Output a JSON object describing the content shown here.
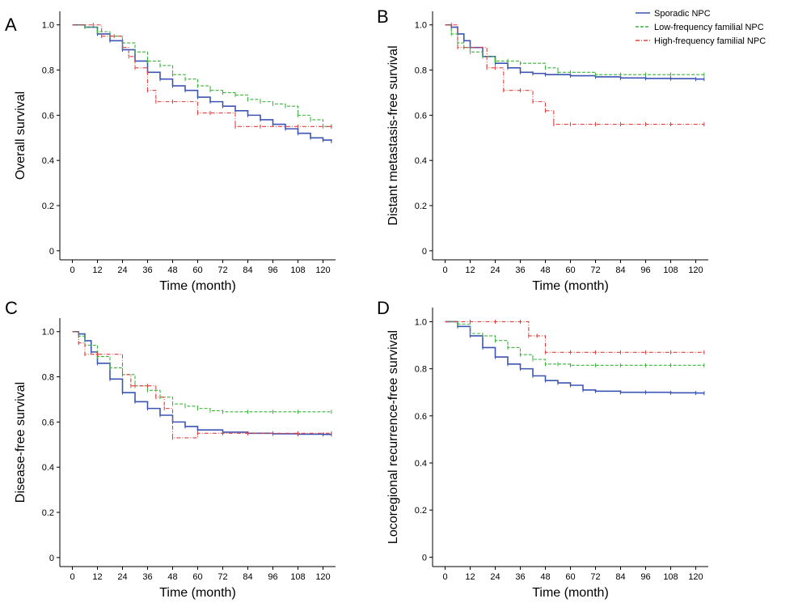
{
  "figure_legend": {
    "entries": [
      {
        "label": "Sporadic NPC",
        "color": "#3c55b4",
        "dash": "solid"
      },
      {
        "label": "Low-frequency familial NPC",
        "color": "#3cb43c",
        "dash": "dashed"
      },
      {
        "label": "High-frequency familial NPC",
        "color": "#e04040",
        "dash": "dashdot"
      }
    ],
    "placement": "top-right"
  },
  "chart_data": [
    {
      "type": "line",
      "panel": "A",
      "xlabel": "Time (month)",
      "ylabel": "Overall survival",
      "xticks": [
        0,
        12,
        24,
        36,
        48,
        60,
        72,
        84,
        96,
        108,
        120
      ],
      "yticks": [
        0,
        0.2,
        0.4,
        0.6,
        0.8,
        1.0
      ],
      "ytick_labels": [
        "0",
        "0.2",
        "0.4",
        "0.6",
        "0.8",
        "1.0"
      ],
      "xlim": [
        -6,
        126
      ],
      "ylim": [
        -0.04,
        1.06
      ],
      "grid": false,
      "series": [
        {
          "name": "Sporadic NPC",
          "x": [
            0,
            6,
            12,
            18,
            24,
            30,
            36,
            42,
            48,
            54,
            60,
            66,
            72,
            78,
            84,
            90,
            96,
            102,
            108,
            114,
            120,
            124
          ],
          "y": [
            1.0,
            0.99,
            0.96,
            0.93,
            0.89,
            0.84,
            0.79,
            0.76,
            0.73,
            0.71,
            0.68,
            0.66,
            0.64,
            0.62,
            0.6,
            0.58,
            0.56,
            0.54,
            0.52,
            0.5,
            0.49,
            0.485
          ]
        },
        {
          "name": "Low-frequency familial NPC",
          "x": [
            0,
            6,
            12,
            18,
            24,
            30,
            36,
            42,
            48,
            54,
            60,
            66,
            72,
            78,
            84,
            90,
            96,
            102,
            108,
            114,
            120,
            124
          ],
          "y": [
            1.0,
            0.99,
            0.97,
            0.95,
            0.92,
            0.88,
            0.84,
            0.82,
            0.78,
            0.76,
            0.73,
            0.71,
            0.7,
            0.69,
            0.67,
            0.66,
            0.65,
            0.64,
            0.6,
            0.58,
            0.55,
            0.55
          ]
        },
        {
          "name": "High-frequency familial NPC",
          "x": [
            0,
            10,
            14,
            20,
            24,
            27,
            30,
            36,
            40,
            48,
            60,
            66,
            78,
            90,
            108,
            124
          ],
          "y": [
            1.0,
            1.0,
            0.95,
            0.95,
            0.9,
            0.86,
            0.81,
            0.71,
            0.66,
            0.66,
            0.61,
            0.61,
            0.55,
            0.55,
            0.55,
            0.55
          ]
        }
      ]
    },
    {
      "type": "line",
      "panel": "B",
      "xlabel": "Time (month)",
      "ylabel": "Distant metastasis-free survival",
      "xticks": [
        0,
        12,
        24,
        36,
        48,
        60,
        72,
        84,
        96,
        108,
        120
      ],
      "yticks": [
        0,
        0.2,
        0.4,
        0.6,
        0.8,
        1.0
      ],
      "ytick_labels": [
        "0",
        "0.2",
        "0.4",
        "0.6",
        "0.8",
        "1.0"
      ],
      "xlim": [
        -6,
        126
      ],
      "ylim": [
        -0.04,
        1.06
      ],
      "grid": false,
      "series": [
        {
          "name": "Sporadic NPC",
          "x": [
            0,
            3,
            6,
            9,
            12,
            18,
            24,
            30,
            36,
            42,
            48,
            60,
            72,
            84,
            96,
            108,
            120,
            124
          ],
          "y": [
            1.0,
            0.99,
            0.96,
            0.93,
            0.9,
            0.86,
            0.83,
            0.81,
            0.79,
            0.785,
            0.78,
            0.775,
            0.77,
            0.765,
            0.763,
            0.762,
            0.76,
            0.76
          ]
        },
        {
          "name": "Low-frequency familial NPC",
          "x": [
            0,
            3,
            6,
            9,
            12,
            18,
            24,
            30,
            36,
            48,
            54,
            60,
            72,
            84,
            96,
            108,
            124
          ],
          "y": [
            1.0,
            0.96,
            0.92,
            0.9,
            0.88,
            0.86,
            0.84,
            0.84,
            0.83,
            0.81,
            0.79,
            0.79,
            0.78,
            0.78,
            0.78,
            0.78,
            0.78
          ]
        },
        {
          "name": "High-frequency familial NPC",
          "x": [
            0,
            3,
            6,
            12,
            20,
            24,
            28,
            36,
            42,
            48,
            52,
            60,
            72,
            84,
            96,
            108,
            124
          ],
          "y": [
            1.0,
            1.0,
            0.9,
            0.9,
            0.81,
            0.81,
            0.71,
            0.71,
            0.66,
            0.62,
            0.56,
            0.56,
            0.56,
            0.56,
            0.56,
            0.56,
            0.56
          ]
        }
      ]
    },
    {
      "type": "line",
      "panel": "C",
      "xlabel": "Time (month)",
      "ylabel": "Disease-free survival",
      "xticks": [
        0,
        12,
        24,
        36,
        48,
        60,
        72,
        84,
        96,
        108,
        120
      ],
      "yticks": [
        0,
        0.2,
        0.4,
        0.6,
        0.8,
        1.0
      ],
      "ytick_labels": [
        "0",
        "0.2",
        "0.4",
        "0.6",
        "0.8",
        "1.0"
      ],
      "xlim": [
        -6,
        126
      ],
      "ylim": [
        -0.04,
        1.06
      ],
      "grid": false,
      "series": [
        {
          "name": "Sporadic NPC",
          "x": [
            0,
            3,
            6,
            9,
            12,
            18,
            24,
            30,
            36,
            42,
            48,
            54,
            60,
            72,
            84,
            96,
            108,
            120,
            124
          ],
          "y": [
            1.0,
            0.99,
            0.96,
            0.91,
            0.86,
            0.79,
            0.73,
            0.69,
            0.66,
            0.63,
            0.6,
            0.58,
            0.565,
            0.555,
            0.55,
            0.548,
            0.546,
            0.545,
            0.545
          ]
        },
        {
          "name": "Low-frequency familial NPC",
          "x": [
            0,
            3,
            6,
            12,
            18,
            24,
            30,
            36,
            42,
            48,
            54,
            60,
            66,
            72,
            84,
            96,
            108,
            124
          ],
          "y": [
            1.0,
            0.98,
            0.94,
            0.89,
            0.84,
            0.81,
            0.76,
            0.74,
            0.71,
            0.68,
            0.67,
            0.66,
            0.65,
            0.645,
            0.645,
            0.645,
            0.645,
            0.645
          ]
        },
        {
          "name": "High-frequency familial NPC",
          "x": [
            0,
            3,
            6,
            12,
            24,
            28,
            30,
            36,
            40,
            44,
            48,
            60,
            72,
            84,
            96,
            108,
            124
          ],
          "y": [
            1.0,
            0.95,
            0.9,
            0.9,
            0.81,
            0.76,
            0.76,
            0.76,
            0.71,
            0.66,
            0.53,
            0.55,
            0.55,
            0.55,
            0.55,
            0.55,
            0.55
          ]
        }
      ]
    },
    {
      "type": "line",
      "panel": "D",
      "xlabel": "Time (month)",
      "ylabel": "Locoregional recurrence-free survival",
      "xticks": [
        0,
        12,
        24,
        36,
        48,
        60,
        72,
        84,
        96,
        108,
        120
      ],
      "yticks": [
        0,
        0.2,
        0.4,
        0.6,
        0.8,
        1.0
      ],
      "ytick_labels": [
        "0",
        "0.2",
        "0.4",
        "0.6",
        "0.8",
        "1.0"
      ],
      "xlim": [
        -6,
        126
      ],
      "ylim": [
        -0.04,
        1.06
      ],
      "grid": false,
      "series": [
        {
          "name": "Sporadic NPC",
          "x": [
            0,
            6,
            12,
            18,
            24,
            30,
            36,
            42,
            48,
            54,
            60,
            66,
            72,
            84,
            96,
            108,
            120,
            124
          ],
          "y": [
            1.0,
            0.98,
            0.94,
            0.89,
            0.85,
            0.82,
            0.8,
            0.77,
            0.75,
            0.74,
            0.73,
            0.71,
            0.705,
            0.7,
            0.7,
            0.698,
            0.697,
            0.696
          ]
        },
        {
          "name": "Low-frequency familial NPC",
          "x": [
            0,
            6,
            12,
            18,
            24,
            30,
            36,
            42,
            48,
            54,
            60,
            72,
            84,
            96,
            108,
            124
          ],
          "y": [
            1.0,
            0.99,
            0.95,
            0.94,
            0.92,
            0.89,
            0.86,
            0.84,
            0.82,
            0.82,
            0.815,
            0.815,
            0.815,
            0.815,
            0.815,
            0.815
          ]
        },
        {
          "name": "High-frequency familial NPC",
          "x": [
            0,
            12,
            24,
            36,
            40,
            44,
            48,
            60,
            72,
            84,
            96,
            108,
            124
          ],
          "y": [
            1.0,
            1.0,
            1.0,
            1.0,
            0.94,
            0.94,
            0.87,
            0.87,
            0.87,
            0.87,
            0.87,
            0.87,
            0.87
          ]
        }
      ]
    }
  ]
}
